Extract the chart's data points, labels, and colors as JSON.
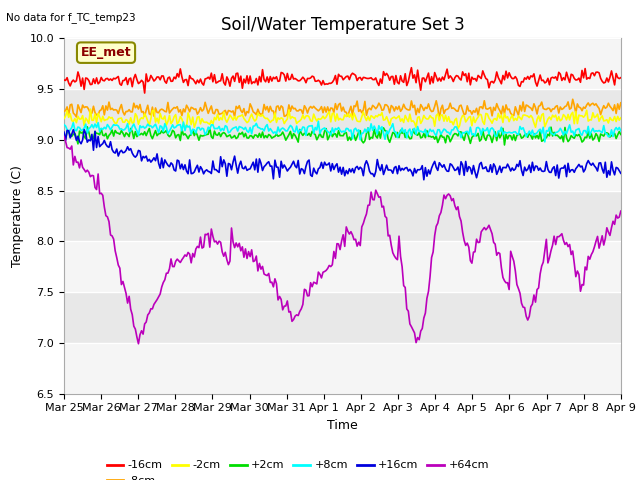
{
  "title": "Soil/Water Temperature Set 3",
  "ylabel": "Temperature (C)",
  "xlabel": "Time",
  "no_data_text": "No data for f_TC_temp23",
  "annotation_text": "EE_met",
  "ylim": [
    6.5,
    10.0
  ],
  "x_tick_labels": [
    "Mar 25",
    "Mar 26",
    "Mar 27",
    "Mar 28",
    "Mar 29",
    "Mar 30",
    "Mar 31",
    "Apr 1",
    "Apr 2",
    "Apr 3",
    "Apr 4",
    "Apr 5",
    "Apr 6",
    "Apr 7",
    "Apr 8",
    "Apr 9"
  ],
  "series_colors": {
    "-16cm": "#ff0000",
    "-8cm": "#ffa500",
    "-2cm": "#ffff00",
    "+2cm": "#00dd00",
    "+8cm": "#00ffff",
    "+16cm": "#0000dd",
    "+64cm": "#bb00bb"
  },
  "bg_color": "#e8e8e8",
  "grid_color": "#d0d0d0",
  "white_band_color": "#f5f5f5",
  "title_fontsize": 12,
  "label_fontsize": 9,
  "tick_fontsize": 8,
  "annot_fontsize": 9
}
